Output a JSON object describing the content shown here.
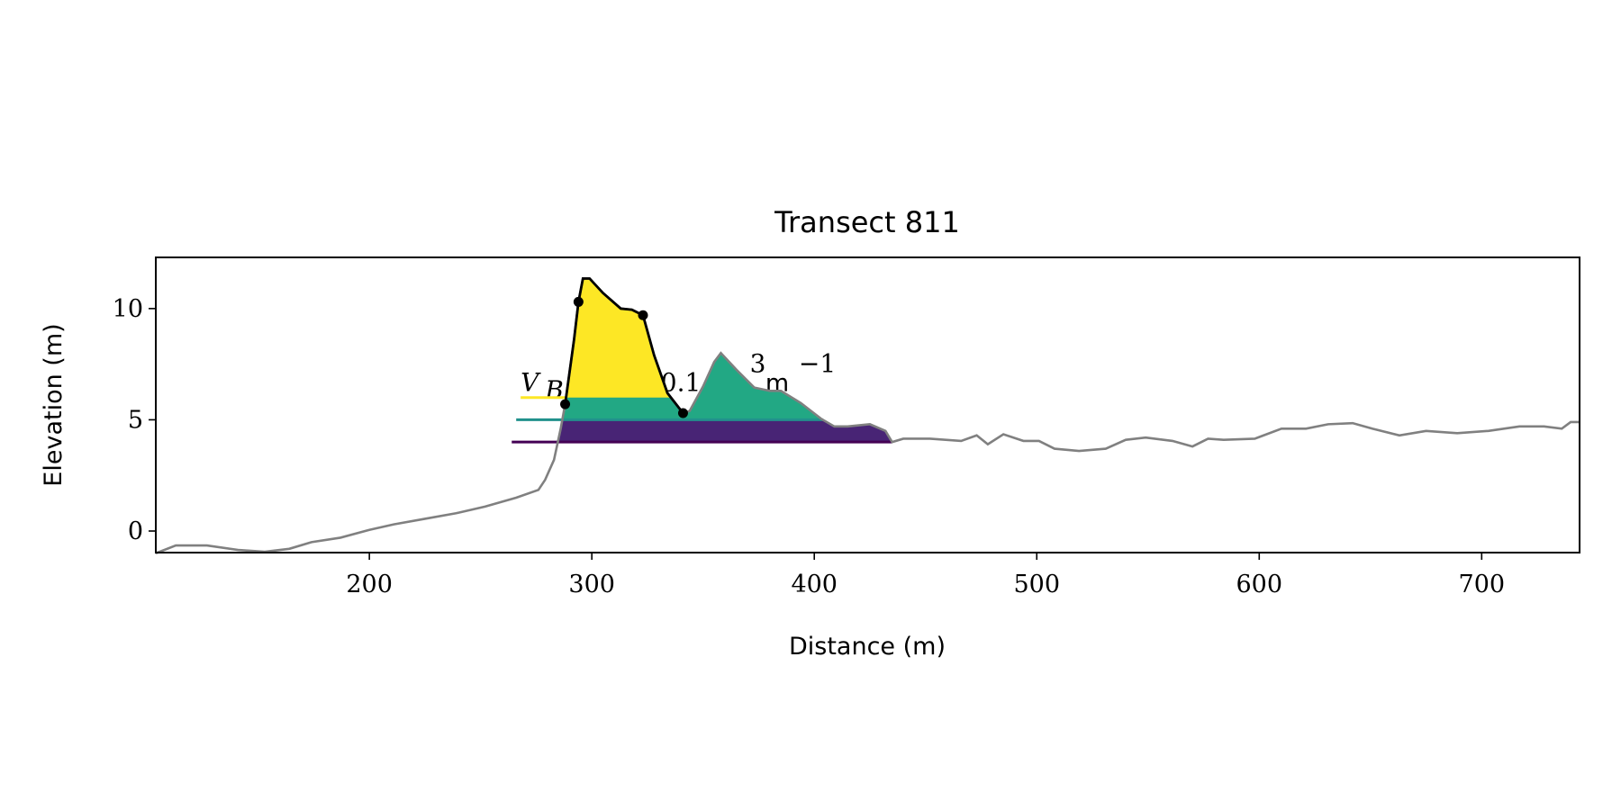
{
  "chart_data": {
    "type": "line",
    "title": "Transect 811",
    "xlabel": "Distance (m)",
    "ylabel": "Elevation (m)",
    "xlim": [
      104,
      744
    ],
    "ylim": [
      -0.97,
      12.3
    ],
    "xticks": [
      200,
      300,
      400,
      500,
      600,
      700
    ],
    "yticks": [
      0,
      5,
      10
    ],
    "grid": false,
    "profile": {
      "color": "#808080",
      "x": [
        104,
        113,
        127,
        141,
        153,
        164,
        174,
        187,
        200,
        211,
        225,
        239,
        252,
        266,
        276,
        279,
        283,
        286,
        288,
        292,
        294,
        296,
        299,
        305,
        313,
        318,
        323,
        328,
        334,
        341,
        344,
        350,
        355,
        358,
        365,
        373,
        380,
        385,
        394,
        403,
        409,
        415,
        425,
        432,
        435,
        440,
        452,
        466,
        473,
        478,
        485,
        494,
        501,
        508,
        519,
        531,
        540,
        549,
        561,
        570,
        577,
        584,
        598,
        610,
        621,
        631,
        642,
        651,
        663,
        675,
        689,
        703,
        717,
        728,
        736,
        740,
        744
      ],
      "y": [
        -1.0,
        -0.65,
        -0.65,
        -0.85,
        -0.93,
        -0.8,
        -0.5,
        -0.3,
        0.05,
        0.3,
        0.55,
        0.8,
        1.1,
        1.5,
        1.85,
        2.3,
        3.2,
        4.6,
        5.7,
        8.6,
        10.3,
        11.35,
        11.35,
        10.7,
        10.0,
        9.95,
        9.7,
        7.9,
        6.2,
        5.3,
        5.4,
        6.5,
        7.6,
        8.0,
        7.25,
        6.45,
        6.3,
        6.3,
        5.75,
        5.05,
        4.7,
        4.7,
        4.8,
        4.5,
        4.0,
        4.15,
        4.15,
        4.05,
        4.3,
        3.9,
        4.35,
        4.05,
        4.05,
        3.7,
        3.6,
        3.7,
        4.1,
        4.2,
        4.05,
        3.8,
        4.15,
        4.1,
        4.15,
        4.6,
        4.6,
        4.8,
        4.85,
        4.6,
        4.3,
        4.5,
        4.4,
        4.5,
        4.7,
        4.7,
        4.6,
        4.9,
        4.9
      ]
    },
    "dune_points": {
      "x": [
        288,
        294,
        323,
        341
      ],
      "y": [
        5.7,
        10.3,
        9.7,
        5.3
      ]
    },
    "levels": [
      {
        "name": "level-high",
        "y": 6.0,
        "x_start": 268,
        "x_end": 288,
        "line_color": "#fde725",
        "fill_color": "#fde725",
        "fill_x": [
          288,
          341
        ]
      },
      {
        "name": "level-mid",
        "y": 5.0,
        "x_start": 266,
        "x_end": 404,
        "line_color": "#21918c",
        "fill_color": "#22a884",
        "fill_x": [
          286,
          405
        ]
      },
      {
        "name": "level-low",
        "y": 4.0,
        "x_start": 264,
        "x_end": 435,
        "line_color": "#440154",
        "fill_color": "#482475",
        "fill_x": [
          283,
          436
        ]
      }
    ],
    "annotation": {
      "v": "V",
      "sub": "B",
      "value": "0.1",
      "sup3": "3",
      "unit": "m",
      "supm1": "−1"
    }
  }
}
